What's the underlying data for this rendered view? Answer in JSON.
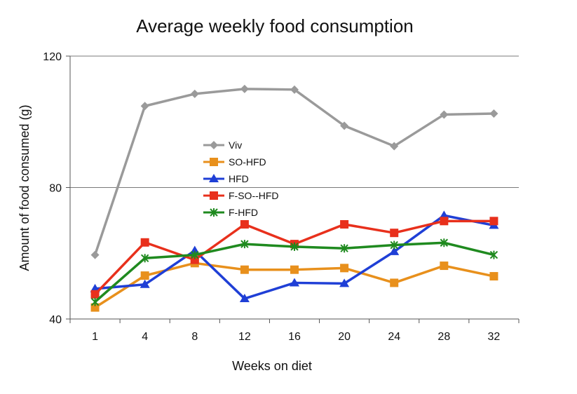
{
  "chart_data": {
    "type": "line",
    "title": "Average weekly food consumption",
    "xlabel": "Weeks on diet",
    "ylabel": "Amount of food consumed (g)",
    "categories": [
      "1",
      "4",
      "8",
      "12",
      "16",
      "20",
      "24",
      "28",
      "32"
    ],
    "ylim": [
      40,
      120
    ],
    "yticks": [
      "40",
      "80",
      "120"
    ],
    "grid": "horizontal",
    "legend_position": "center-left",
    "series": [
      {
        "name": "Viv",
        "color": "#9a9a9a",
        "marker": "diamond",
        "values": [
          59.5,
          104.8,
          108.5,
          110.0,
          109.8,
          98.8,
          92.6,
          102.2,
          102.5
        ]
      },
      {
        "name": "SO-HFD",
        "color": "#e8901c",
        "marker": "square",
        "values": [
          43.5,
          53.2,
          57.0,
          55.0,
          55.0,
          55.5,
          51.0,
          56.2,
          53.0
        ]
      },
      {
        "name": "HFD",
        "color": "#1f3fd6",
        "marker": "triangle",
        "values": [
          49.2,
          50.5,
          60.8,
          46.2,
          51.0,
          50.8,
          60.5,
          71.5,
          68.5
        ]
      },
      {
        "name": "F-SO--HFD",
        "color": "#e8301c",
        "marker": "square",
        "values": [
          47.5,
          63.3,
          58.0,
          68.8,
          62.8,
          68.8,
          66.2,
          69.8,
          69.8
        ]
      },
      {
        "name": "F-HFD",
        "color": "#1f8a1f",
        "marker": "star",
        "values": [
          45.2,
          58.5,
          59.5,
          62.8,
          62.0,
          61.5,
          62.5,
          63.2,
          59.5
        ]
      }
    ]
  }
}
